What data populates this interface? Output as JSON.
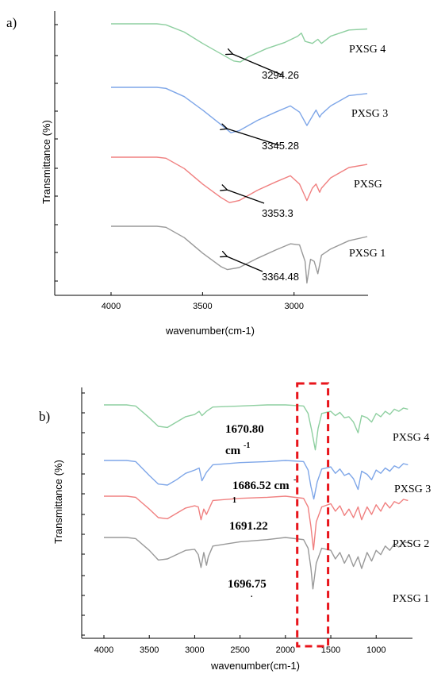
{
  "chart_data": [
    {
      "panel_label": "a)",
      "type": "line",
      "xlabel": "wavenumber(cm-1)",
      "ylabel": "Transmittance (%)",
      "xlim": [
        4000,
        2600
      ],
      "x_ticks": [
        "4000",
        "3500",
        "3000"
      ],
      "x_tick_values": [
        4000,
        3500,
        3000
      ],
      "grid": false,
      "series": [
        {
          "name": "PXSG 4",
          "color": "#8ecfa0",
          "x": [
            4000,
            3750,
            3700,
            3600,
            3500,
            3400,
            3330,
            3294,
            3250,
            3150,
            3050,
            2980,
            2960,
            2940,
            2900,
            2870,
            2850,
            2800,
            2700,
            2600
          ],
          "y": [
            0.0,
            0.0,
            -0.05,
            -0.4,
            -0.95,
            -1.45,
            -1.8,
            -1.85,
            -1.6,
            -1.2,
            -0.9,
            -0.6,
            -0.45,
            -0.85,
            -0.95,
            -0.75,
            -0.95,
            -0.6,
            -0.3,
            -0.25
          ],
          "annotation": "3294.26"
        },
        {
          "name": "PXSG 3",
          "color": "#7ea6e8",
          "x": [
            4000,
            3750,
            3700,
            3600,
            3500,
            3400,
            3345,
            3300,
            3200,
            3100,
            3020,
            2970,
            2930,
            2900,
            2880,
            2860,
            2850,
            2800,
            2700,
            2600
          ],
          "y": [
            0.0,
            0.0,
            -0.05,
            -0.45,
            -1.1,
            -1.8,
            -2.2,
            -2.1,
            -1.6,
            -1.2,
            -0.9,
            -1.2,
            -1.85,
            -1.4,
            -1.1,
            -1.45,
            -1.3,
            -0.9,
            -0.4,
            -0.3
          ],
          "annotation": "3345.28"
        },
        {
          "name": "PXSG",
          "color": "#f08080",
          "x": [
            4000,
            3750,
            3700,
            3600,
            3500,
            3400,
            3353,
            3300,
            3200,
            3100,
            3020,
            2970,
            2930,
            2900,
            2880,
            2860,
            2850,
            2800,
            2700,
            2600
          ],
          "y": [
            0.0,
            0.0,
            -0.05,
            -0.55,
            -1.3,
            -1.95,
            -2.2,
            -2.1,
            -1.6,
            -1.2,
            -0.9,
            -1.3,
            -2.1,
            -1.5,
            -1.3,
            -1.7,
            -1.5,
            -1.0,
            -0.5,
            -0.35
          ],
          "annotation": "3353.3"
        },
        {
          "name": "PXSG 1",
          "color": "#999999",
          "x": [
            4000,
            3750,
            3700,
            3600,
            3500,
            3400,
            3364,
            3300,
            3200,
            3100,
            3020,
            2970,
            2940,
            2930,
            2910,
            2890,
            2870,
            2850,
            2800,
            2700,
            2600
          ],
          "y": [
            0.0,
            0.0,
            -0.05,
            -0.55,
            -1.3,
            -1.95,
            -2.1,
            -2.0,
            -1.55,
            -1.15,
            -0.85,
            -0.9,
            -1.7,
            -2.75,
            -1.6,
            -1.7,
            -2.3,
            -1.4,
            -1.1,
            -0.7,
            -0.5
          ],
          "annotation": "3364.48"
        }
      ]
    },
    {
      "panel_label": "b)",
      "type": "line",
      "xlabel": "wavenumber(cm-1)",
      "ylabel": "Transmittance (%)",
      "xlim": [
        4000,
        600
      ],
      "x_ticks": [
        "4000",
        "3500",
        "3000",
        "2500",
        "2000",
        "1500",
        "1000"
      ],
      "x_tick_values": [
        4000,
        3500,
        3000,
        2500,
        2000,
        1500,
        1000
      ],
      "grid": false,
      "highlight_region": [
        1870,
        1530
      ],
      "highlight_color": "#e8141b",
      "series": [
        {
          "name": "PXSG 4",
          "color": "#8ecfa0",
          "x": [
            4000,
            3750,
            3650,
            3500,
            3400,
            3300,
            3200,
            3100,
            3000,
            2950,
            2920,
            2870,
            2800,
            2500,
            2200,
            2000,
            1800,
            1750,
            1710,
            1671,
            1640,
            1600,
            1500,
            1450,
            1400,
            1350,
            1300,
            1250,
            1200,
            1160,
            1100,
            1050,
            1000,
            950,
            900,
            850,
            800,
            750,
            700,
            650
          ],
          "y": [
            0.0,
            0.0,
            -0.05,
            -0.6,
            -1.0,
            -1.05,
            -0.8,
            -0.55,
            -0.45,
            -0.3,
            -0.5,
            -0.3,
            -0.1,
            -0.05,
            0.0,
            0.0,
            -0.05,
            -0.4,
            -1.2,
            -2.1,
            -1.1,
            -0.4,
            -0.3,
            -0.5,
            -0.35,
            -0.6,
            -0.55,
            -0.8,
            -1.3,
            -0.5,
            -0.6,
            -0.8,
            -0.4,
            -0.55,
            -0.3,
            -0.45,
            -0.2,
            -0.3,
            -0.15,
            -0.2
          ],
          "annotation": "1670.80",
          "annotation_unit": "cm",
          "annotation_sup": "-1"
        },
        {
          "name": "PXSG 3",
          "color": "#7ea6e8",
          "x": [
            4000,
            3750,
            3650,
            3500,
            3400,
            3300,
            3200,
            3100,
            3000,
            2950,
            2920,
            2870,
            2800,
            2500,
            2200,
            2000,
            1800,
            1750,
            1720,
            1687,
            1650,
            1600,
            1500,
            1450,
            1400,
            1350,
            1300,
            1250,
            1200,
            1160,
            1100,
            1050,
            1000,
            950,
            900,
            850,
            800,
            750,
            700,
            650
          ],
          "y": [
            0.0,
            0.0,
            -0.05,
            -0.7,
            -1.1,
            -1.15,
            -0.9,
            -0.6,
            -0.45,
            -0.35,
            -0.95,
            -0.55,
            -0.2,
            -0.1,
            -0.05,
            0.0,
            -0.05,
            -0.45,
            -1.2,
            -1.8,
            -1.0,
            -0.4,
            -0.3,
            -0.6,
            -0.4,
            -0.7,
            -0.6,
            -0.85,
            -1.35,
            -0.5,
            -0.65,
            -0.9,
            -0.45,
            -0.6,
            -0.35,
            -0.5,
            -0.25,
            -0.35,
            -0.15,
            -0.2
          ],
          "annotation": "1686.52 cm",
          "annotation_sup": "-",
          "annotation_sub": "1"
        },
        {
          "name": "PXSG 2",
          "color": "#f08080",
          "x": [
            4000,
            3750,
            3650,
            3500,
            3400,
            3300,
            3200,
            3100,
            3000,
            2960,
            2930,
            2900,
            2870,
            2800,
            2500,
            2200,
            2000,
            1800,
            1750,
            1720,
            1691,
            1660,
            1600,
            1500,
            1450,
            1400,
            1350,
            1300,
            1250,
            1200,
            1160,
            1100,
            1050,
            1000,
            950,
            900,
            850,
            800,
            750,
            700,
            650
          ],
          "y": [
            0.0,
            0.0,
            -0.05,
            -0.6,
            -1.0,
            -1.05,
            -0.8,
            -0.55,
            -0.45,
            -0.5,
            -1.1,
            -0.6,
            -0.85,
            -0.2,
            -0.1,
            -0.05,
            0.0,
            -0.1,
            -0.5,
            -1.4,
            -2.5,
            -1.2,
            -0.5,
            -0.35,
            -0.7,
            -0.45,
            -0.9,
            -0.6,
            -1.0,
            -0.5,
            -1.1,
            -0.5,
            -0.85,
            -0.4,
            -0.7,
            -0.3,
            -0.55,
            -0.25,
            -0.35,
            -0.15,
            -0.2
          ],
          "annotation": "1691.22"
        },
        {
          "name": "PXSG 1",
          "color": "#999999",
          "x": [
            4000,
            3750,
            3650,
            3500,
            3400,
            3300,
            3200,
            3100,
            3000,
            2960,
            2930,
            2900,
            2870,
            2850,
            2800,
            2500,
            2200,
            2000,
            1800,
            1750,
            1720,
            1697,
            1660,
            1600,
            1500,
            1450,
            1400,
            1350,
            1300,
            1250,
            1200,
            1160,
            1100,
            1050,
            1000,
            950,
            900,
            850,
            800,
            750,
            700,
            650
          ],
          "y": [
            0.0,
            0.0,
            -0.05,
            -0.6,
            -1.05,
            -1.0,
            -0.8,
            -0.6,
            -0.55,
            -0.8,
            -1.4,
            -0.7,
            -1.3,
            -0.9,
            -0.4,
            -0.2,
            -0.1,
            0.0,
            -0.1,
            -0.5,
            -1.4,
            -2.4,
            -1.2,
            -0.5,
            -0.6,
            -1.0,
            -0.7,
            -1.2,
            -0.8,
            -1.35,
            -0.9,
            -1.45,
            -0.7,
            -1.1,
            -0.6,
            -0.8,
            -0.4,
            -0.6,
            -0.3,
            -0.45,
            -0.2,
            -0.25
          ],
          "annotation": "1696.75",
          "annotation_sub": "."
        }
      ]
    }
  ]
}
